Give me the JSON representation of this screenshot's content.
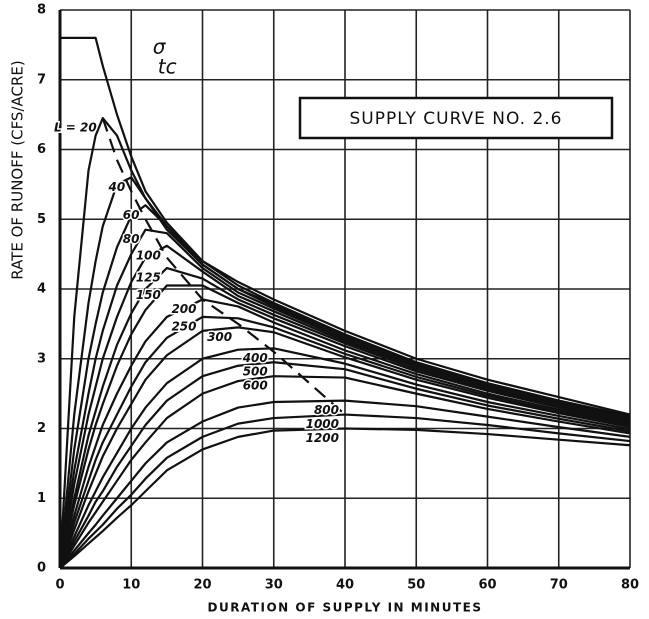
{
  "chart_data": {
    "type": "line",
    "title": "SUPPLY CURVE NO. 2.6",
    "x_label": "DURATION OF SUPPLY IN MINUTES",
    "y_label": "RATE OF RUNOFF (CFS/ACRE)",
    "x": [
      0,
      2,
      4,
      5,
      6,
      8,
      10,
      12,
      15,
      20,
      25,
      30,
      40,
      50,
      60,
      70,
      80
    ],
    "xlim": [
      0,
      80
    ],
    "xticks": [
      0,
      10,
      20,
      30,
      40,
      50,
      60,
      70,
      80
    ],
    "ylim": [
      0,
      8
    ],
    "yticks": [
      0,
      1,
      2,
      3,
      4,
      5,
      6,
      7,
      8
    ],
    "grid": true,
    "color": "#111111",
    "series": [
      {
        "name": "σ",
        "values": [
          7.6,
          7.6,
          7.6,
          7.6,
          7.2,
          6.5,
          5.9,
          5.4,
          4.95,
          4.4,
          4.1,
          3.85,
          3.4,
          3.0,
          2.7,
          2.45,
          2.2
        ]
      },
      {
        "name": "tc",
        "dashed": true,
        "values": [
          null,
          null,
          null,
          null,
          6.45,
          5.85,
          5.4,
          5.0,
          4.45,
          3.85,
          3.5,
          3.1,
          2.2,
          null,
          null,
          null,
          null
        ]
      },
      {
        "name": "L = 20",
        "values": [
          0,
          3.6,
          5.7,
          6.2,
          6.45,
          6.2,
          5.7,
          5.3,
          4.9,
          4.4,
          4.05,
          3.8,
          3.35,
          2.95,
          2.65,
          2.4,
          2.18
        ]
      },
      {
        "name": "40",
        "values": [
          0,
          2.2,
          3.8,
          4.4,
          4.9,
          5.5,
          5.6,
          5.3,
          4.85,
          4.35,
          4.0,
          3.78,
          3.33,
          2.93,
          2.63,
          2.38,
          2.16
        ]
      },
      {
        "name": "60",
        "values": [
          0,
          1.7,
          3.0,
          3.5,
          3.95,
          4.6,
          5.05,
          5.2,
          4.9,
          4.35,
          4.0,
          3.75,
          3.3,
          2.92,
          2.62,
          2.37,
          2.15
        ]
      },
      {
        "name": "80",
        "values": [
          0,
          1.4,
          2.5,
          3.0,
          3.4,
          4.05,
          4.5,
          4.85,
          4.8,
          4.3,
          3.95,
          3.72,
          3.28,
          2.9,
          2.6,
          2.36,
          2.14
        ]
      },
      {
        "name": "100",
        "values": [
          0,
          1.2,
          2.2,
          2.6,
          3.0,
          3.6,
          4.1,
          4.45,
          4.62,
          4.25,
          3.9,
          3.68,
          3.25,
          2.88,
          2.58,
          2.34,
          2.12
        ]
      },
      {
        "name": "125",
        "values": [
          0,
          1.0,
          1.9,
          2.25,
          2.6,
          3.2,
          3.65,
          4.0,
          4.3,
          4.15,
          3.85,
          3.63,
          3.22,
          2.85,
          2.56,
          2.32,
          2.1
        ]
      },
      {
        "name": "150",
        "values": [
          0,
          0.9,
          1.7,
          2.05,
          2.35,
          2.9,
          3.35,
          3.7,
          4.05,
          4.05,
          3.8,
          3.58,
          3.18,
          2.82,
          2.54,
          2.3,
          2.08
        ]
      },
      {
        "name": "200",
        "values": [
          0,
          0.75,
          1.45,
          1.75,
          2.05,
          2.5,
          2.9,
          3.25,
          3.6,
          3.85,
          3.75,
          3.52,
          3.12,
          2.78,
          2.5,
          2.27,
          2.06
        ]
      },
      {
        "name": "250",
        "values": [
          0,
          0.65,
          1.25,
          1.55,
          1.8,
          2.2,
          2.6,
          2.95,
          3.3,
          3.6,
          3.58,
          3.45,
          3.07,
          2.74,
          2.47,
          2.24,
          2.04
        ]
      },
      {
        "name": "300",
        "values": [
          0,
          0.55,
          1.1,
          1.35,
          1.6,
          2.0,
          2.35,
          2.7,
          3.05,
          3.4,
          3.45,
          3.38,
          3.02,
          2.7,
          2.44,
          2.22,
          2.02
        ]
      },
      {
        "name": "400",
        "values": [
          0,
          0.45,
          0.9,
          1.1,
          1.3,
          1.65,
          2.0,
          2.3,
          2.65,
          3.0,
          3.13,
          3.15,
          2.93,
          2.63,
          2.38,
          2.18,
          1.99
        ]
      },
      {
        "name": "500",
        "values": [
          0,
          0.38,
          0.75,
          0.95,
          1.1,
          1.45,
          1.75,
          2.05,
          2.4,
          2.75,
          2.9,
          2.95,
          2.85,
          2.57,
          2.33,
          2.14,
          1.96
        ]
      },
      {
        "name": "600",
        "values": [
          0,
          0.32,
          0.65,
          0.8,
          0.95,
          1.25,
          1.55,
          1.8,
          2.15,
          2.5,
          2.68,
          2.75,
          2.73,
          2.5,
          2.28,
          2.1,
          1.93
        ]
      },
      {
        "name": "800",
        "values": [
          0,
          0.25,
          0.5,
          0.62,
          0.75,
          1.0,
          1.25,
          1.5,
          1.8,
          2.1,
          2.3,
          2.38,
          2.4,
          2.32,
          2.17,
          2.02,
          1.88
        ]
      },
      {
        "name": "1000",
        "values": [
          0,
          0.2,
          0.42,
          0.52,
          0.62,
          0.85,
          1.05,
          1.28,
          1.58,
          1.88,
          2.07,
          2.15,
          2.2,
          2.15,
          2.05,
          1.93,
          1.82
        ]
      },
      {
        "name": "1200",
        "values": [
          0,
          0.17,
          0.35,
          0.44,
          0.53,
          0.72,
          0.9,
          1.1,
          1.4,
          1.7,
          1.88,
          1.97,
          2.0,
          1.98,
          1.92,
          1.84,
          1.76
        ]
      }
    ]
  }
}
